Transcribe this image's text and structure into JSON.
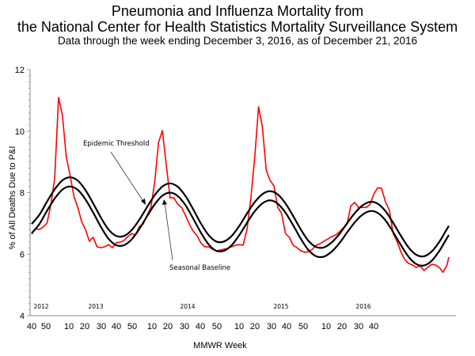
{
  "chart_data": {
    "type": "line",
    "title": [
      "Pneumonia and Influenza Mortality from",
      "the National Center for Health Statistics Mortality Surveillance System"
    ],
    "subtitle": "Data through the week ending December 3, 2016, as of December 21, 2016",
    "xlabel": "MMWR Week",
    "ylabel": "% of All Deaths Due to P&I",
    "ylim": [
      4,
      12
    ],
    "yticks": [
      "4",
      "6",
      "8",
      "10",
      "12"
    ],
    "xticks": [
      "40",
      "50",
      "10",
      "20",
      "30",
      "40",
      "50",
      "10",
      "20",
      "30",
      "40",
      "50",
      "10",
      "20",
      "30",
      "40",
      "50",
      "10",
      "20",
      "30",
      "40"
    ],
    "year_labels": [
      "2012",
      "2013",
      "2014",
      "2015",
      "2016"
    ],
    "grid": false,
    "annotations": [
      "Epidemic Threshold",
      "Seasonal Baseline"
    ],
    "colors": {
      "observed": "#ff0000",
      "threshold": "#000000",
      "baseline": "#000000"
    },
    "series": [
      {
        "key": "observed",
        "x": [
          "2012-40",
          "2012-42",
          "2012-44",
          "2012-46",
          "2012-48",
          "2012-50",
          "2012-52",
          "2013-02",
          "2013-04",
          "2013-06",
          "2013-08",
          "2013-10",
          "2013-12",
          "2013-14",
          "2013-16",
          "2013-18",
          "2013-20",
          "2013-22",
          "2013-24",
          "2013-26",
          "2013-28",
          "2013-30",
          "2013-32",
          "2013-34",
          "2013-36",
          "2013-38",
          "2013-40",
          "2013-42",
          "2013-44",
          "2013-46",
          "2013-48",
          "2013-50",
          "2013-52",
          "2014-02",
          "2014-04",
          "2014-06",
          "2014-08",
          "2014-10",
          "2014-12",
          "2014-14",
          "2014-16",
          "2014-18",
          "2014-20",
          "2014-22",
          "2014-24",
          "2014-26",
          "2014-28",
          "2014-30",
          "2014-32",
          "2014-34",
          "2014-36",
          "2014-38",
          "2014-40",
          "2014-42",
          "2014-44",
          "2014-46",
          "2014-48",
          "2014-50",
          "2014-52",
          "2015-01",
          "2015-03",
          "2015-05",
          "2015-07",
          "2015-09",
          "2015-11",
          "2015-13",
          "2015-15",
          "2015-17",
          "2015-19",
          "2015-21",
          "2015-23",
          "2015-25",
          "2015-27",
          "2015-29",
          "2015-31",
          "2015-33",
          "2015-35",
          "2015-37",
          "2015-39",
          "2015-41",
          "2015-43",
          "2015-45",
          "2015-47",
          "2015-49",
          "2015-51",
          "2016-01",
          "2016-03",
          "2016-05",
          "2016-07",
          "2016-09",
          "2016-11",
          "2016-13",
          "2016-15",
          "2016-17",
          "2016-19",
          "2016-21",
          "2016-23",
          "2016-25",
          "2016-27",
          "2016-29",
          "2016-31",
          "2016-33",
          "2016-35",
          "2016-37",
          "2016-39",
          "2016-41",
          "2016-43",
          "2016-45",
          "2016-47",
          "2016-48"
        ],
        "values": [
          6.65,
          6.83,
          6.8,
          6.88,
          7.01,
          7.62,
          8.47,
          11.1,
          10.5,
          9.17,
          8.55,
          7.88,
          7.52,
          7.06,
          6.8,
          6.42,
          6.55,
          6.24,
          6.21,
          6.24,
          6.31,
          6.21,
          6.37,
          6.39,
          6.44,
          6.57,
          6.67,
          6.62,
          6.9,
          6.98,
          7.26,
          7.52,
          8.34,
          9.63,
          10.02,
          8.91,
          7.83,
          7.83,
          7.62,
          7.52,
          7.26,
          6.98,
          6.75,
          6.6,
          6.37,
          6.24,
          6.24,
          6.16,
          6.11,
          6.13,
          6.16,
          6.19,
          6.24,
          6.29,
          6.31,
          6.29,
          6.8,
          7.83,
          9.12,
          10.79,
          10.14,
          8.73,
          8.4,
          8.22,
          7.52,
          7.32,
          6.67,
          6.55,
          6.29,
          6.21,
          6.11,
          6.06,
          6.08,
          6.16,
          6.29,
          6.34,
          6.42,
          6.49,
          6.57,
          6.62,
          6.72,
          6.85,
          6.96,
          7.57,
          7.68,
          7.52,
          7.52,
          7.52,
          7.62,
          7.96,
          8.16,
          8.14,
          7.7,
          7.44,
          6.67,
          6.42,
          6.08,
          5.83,
          5.7,
          5.65,
          5.57,
          5.62,
          5.47,
          5.57,
          5.67,
          5.65,
          5.57,
          5.41,
          5.65,
          5.9
        ]
      },
      {
        "key": "baseline",
        "x": [
          "2012-40",
          "2012-44",
          "2012-48",
          "2012-52",
          "2013-04",
          "2013-08",
          "2013-12",
          "2013-16",
          "2013-20",
          "2013-24",
          "2013-28",
          "2013-32",
          "2013-36",
          "2013-40",
          "2013-44",
          "2013-48",
          "2013-52",
          "2014-04",
          "2014-08",
          "2014-12",
          "2014-16",
          "2014-20",
          "2014-24",
          "2014-28",
          "2014-32",
          "2014-36",
          "2014-40",
          "2014-44",
          "2014-48",
          "2014-52",
          "2015-03",
          "2015-07",
          "2015-11",
          "2015-15",
          "2015-19",
          "2015-23",
          "2015-27",
          "2015-31",
          "2015-35",
          "2015-39",
          "2015-43",
          "2015-47",
          "2015-51",
          "2016-03",
          "2016-07",
          "2016-11",
          "2016-15",
          "2016-19",
          "2016-23",
          "2016-27",
          "2016-31",
          "2016-35",
          "2016-39",
          "2016-43",
          "2016-47",
          "2016-48"
        ],
        "values": [
          6.68,
          6.98,
          7.41,
          7.81,
          8.1,
          8.2,
          8.09,
          7.78,
          7.35,
          6.89,
          6.5,
          6.29,
          6.29,
          6.48,
          6.82,
          7.23,
          7.62,
          7.9,
          8.0,
          7.89,
          7.59,
          7.16,
          6.7,
          6.32,
          6.11,
          6.11,
          6.29,
          6.62,
          7.02,
          7.39,
          7.65,
          7.75,
          7.64,
          7.35,
          6.94,
          6.5,
          6.13,
          5.93,
          5.92,
          6.08,
          6.35,
          6.7,
          7.03,
          7.28,
          7.4,
          7.34,
          7.1,
          6.72,
          6.3,
          5.92,
          5.68,
          5.63,
          5.78,
          6.1,
          6.52,
          6.62
        ]
      },
      {
        "key": "threshold",
        "x": [
          "2012-40",
          "2012-44",
          "2012-48",
          "2012-52",
          "2013-04",
          "2013-08",
          "2013-12",
          "2013-16",
          "2013-20",
          "2013-24",
          "2013-28",
          "2013-32",
          "2013-36",
          "2013-40",
          "2013-44",
          "2013-48",
          "2013-52",
          "2014-04",
          "2014-08",
          "2014-12",
          "2014-16",
          "2014-20",
          "2014-24",
          "2014-28",
          "2014-32",
          "2014-36",
          "2014-40",
          "2014-44",
          "2014-48",
          "2014-52",
          "2015-03",
          "2015-07",
          "2015-11",
          "2015-15",
          "2015-19",
          "2015-23",
          "2015-27",
          "2015-31",
          "2015-35",
          "2015-39",
          "2015-43",
          "2015-47",
          "2015-51",
          "2016-03",
          "2016-07",
          "2016-11",
          "2016-15",
          "2016-19",
          "2016-23",
          "2016-27",
          "2016-31",
          "2016-35",
          "2016-39",
          "2016-43",
          "2016-47",
          "2016-48"
        ],
        "values": [
          6.98,
          7.28,
          7.71,
          8.11,
          8.4,
          8.5,
          8.39,
          8.08,
          7.65,
          7.19,
          6.8,
          6.59,
          6.59,
          6.78,
          7.12,
          7.53,
          7.92,
          8.2,
          8.3,
          8.19,
          7.89,
          7.46,
          7.0,
          6.62,
          6.41,
          6.41,
          6.59,
          6.92,
          7.32,
          7.69,
          7.95,
          8.05,
          7.94,
          7.65,
          7.24,
          6.8,
          6.43,
          6.23,
          6.22,
          6.38,
          6.65,
          7.0,
          7.33,
          7.58,
          7.7,
          7.64,
          7.4,
          7.02,
          6.6,
          6.22,
          5.98,
          5.93,
          6.08,
          6.4,
          6.82,
          6.92
        ]
      }
    ]
  }
}
